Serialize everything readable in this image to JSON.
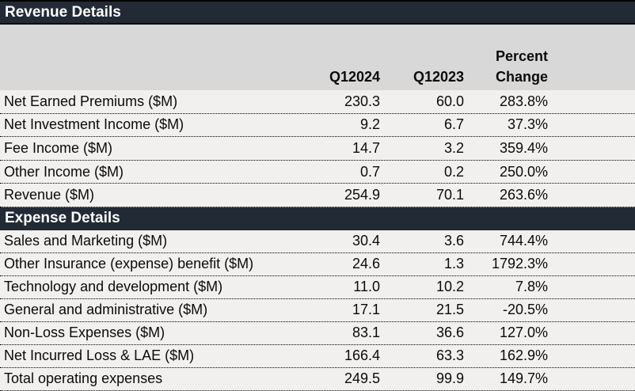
{
  "chart_data": {
    "type": "table",
    "columns": [
      "",
      "Q12024",
      "Q12023",
      "Percent Change"
    ],
    "sections": [
      {
        "title": "Revenue Details",
        "rows": [
          {
            "label": "Net Earned Premiums ($M)",
            "q1_2024": "230.3",
            "q1_2023": "60.0",
            "pct_change": "283.8%"
          },
          {
            "label": "Net Investment Income ($M)",
            "q1_2024": "9.2",
            "q1_2023": "6.7",
            "pct_change": "37.3%"
          },
          {
            "label": "Fee Income ($M)",
            "q1_2024": "14.7",
            "q1_2023": "3.2",
            "pct_change": "359.4%"
          },
          {
            "label": "Other Income ($M)",
            "q1_2024": "0.7",
            "q1_2023": "0.2",
            "pct_change": "250.0%"
          },
          {
            "label": "Revenue ($M)",
            "q1_2024": "254.9",
            "q1_2023": "70.1",
            "pct_change": "263.6%"
          }
        ]
      },
      {
        "title": "Expense Details",
        "rows": [
          {
            "label": "Sales and Marketing ($M)",
            "q1_2024": "30.4",
            "q1_2023": "3.6",
            "pct_change": "744.4%"
          },
          {
            "label": "Other Insurance (expense) benefit ($M)",
            "q1_2024": "24.6",
            "q1_2023": "1.3",
            "pct_change": "1792.3%"
          },
          {
            "label": "Technology and development ($M)",
            "q1_2024": "11.0",
            "q1_2023": "10.2",
            "pct_change": "7.8%"
          },
          {
            "label": "General and administrative ($M)",
            "q1_2024": "17.1",
            "q1_2023": "21.5",
            "pct_change": "-20.5%"
          },
          {
            "label": "Non-Loss Expenses ($M)",
            "q1_2024": "83.1",
            "q1_2023": "36.6",
            "pct_change": "127.0%"
          },
          {
            "label": "Net Incurred Loss & LAE ($M)",
            "q1_2024": "166.4",
            "q1_2023": "63.3",
            "pct_change": "162.9%"
          },
          {
            "label": "Total operating expenses",
            "q1_2024": "249.5",
            "q1_2023": "99.9",
            "pct_change": "149.7%"
          }
        ]
      }
    ]
  },
  "column_headers": {
    "q1_2024": "Q12024",
    "q1_2023": "Q12023",
    "percent_line1": "Percent",
    "percent_line2": "Change"
  },
  "colors": {
    "section_bar": "#222A35",
    "section_text": "#FFFFFF",
    "header_bg": "#D8D8D8",
    "row_bg": "#F1F0EE",
    "border_dark": "#000000",
    "text": "#0B0B0B"
  }
}
